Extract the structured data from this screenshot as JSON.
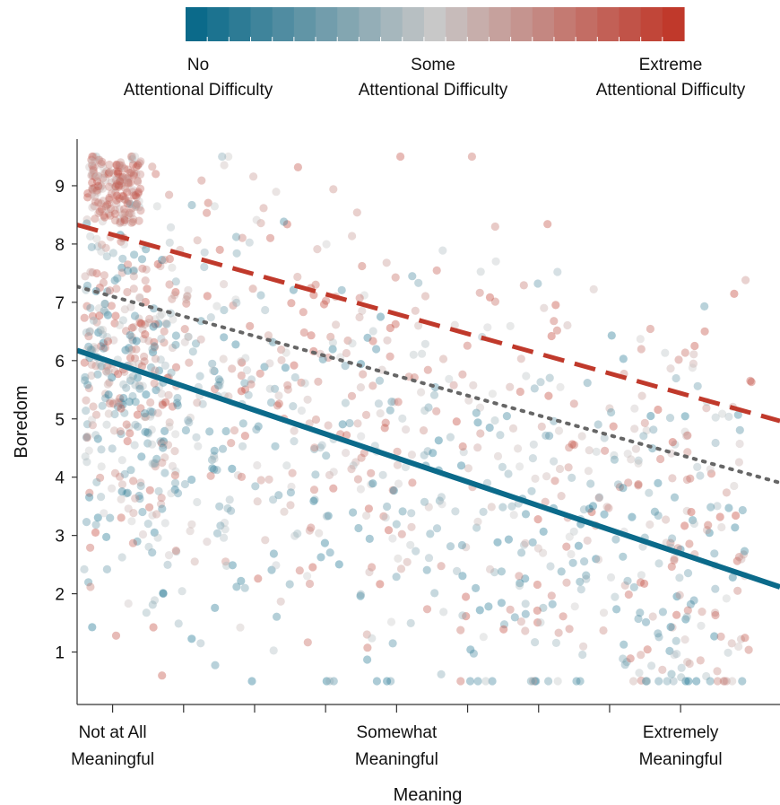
{
  "chart_data": {
    "type": "scatter",
    "xlabel": "Meaning",
    "ylabel": "Boredom",
    "xlim": [
      0.5,
      10.4
    ],
    "ylim": [
      0.1,
      9.8
    ],
    "x_ticks": [
      1,
      2,
      3,
      4,
      5,
      6,
      7,
      8,
      9
    ],
    "x_tick_labels": [
      {
        "at": 1,
        "lines": [
          "Not at All",
          "Meaningful"
        ]
      },
      {
        "at": 5,
        "lines": [
          "Somewhat",
          "Meaningful"
        ]
      },
      {
        "at": 9,
        "lines": [
          "Extremely",
          "Meaningful"
        ]
      }
    ],
    "y_ticks": [
      1,
      2,
      3,
      4,
      5,
      6,
      7,
      8,
      9
    ],
    "color_scale": {
      "low_color": "#0b6a8a",
      "mid_color": "#c8c8c8",
      "high_color": "#c0392b",
      "labels": [
        {
          "position": "left",
          "lines": [
            "No",
            "Attentional Difficulty"
          ]
        },
        {
          "position": "center",
          "lines": [
            "Some",
            "Attentional Difficulty"
          ]
        },
        {
          "position": "right",
          "lines": [
            "Extreme",
            "Attentional Difficulty"
          ]
        }
      ]
    },
    "fit_lines": [
      {
        "attention": "low",
        "intercept": 6.38,
        "slope": -0.41,
        "style": "solid",
        "color": "#0b6a8a"
      },
      {
        "attention": "mean",
        "intercept": 7.44,
        "slope": -0.34,
        "style": "dotted",
        "color": "#666666"
      },
      {
        "attention": "high",
        "intercept": 8.5,
        "slope": -0.34,
        "style": "dashed",
        "color": "#c0392b"
      }
    ],
    "point_count": 1400,
    "grid": false,
    "legend": "top-center"
  }
}
